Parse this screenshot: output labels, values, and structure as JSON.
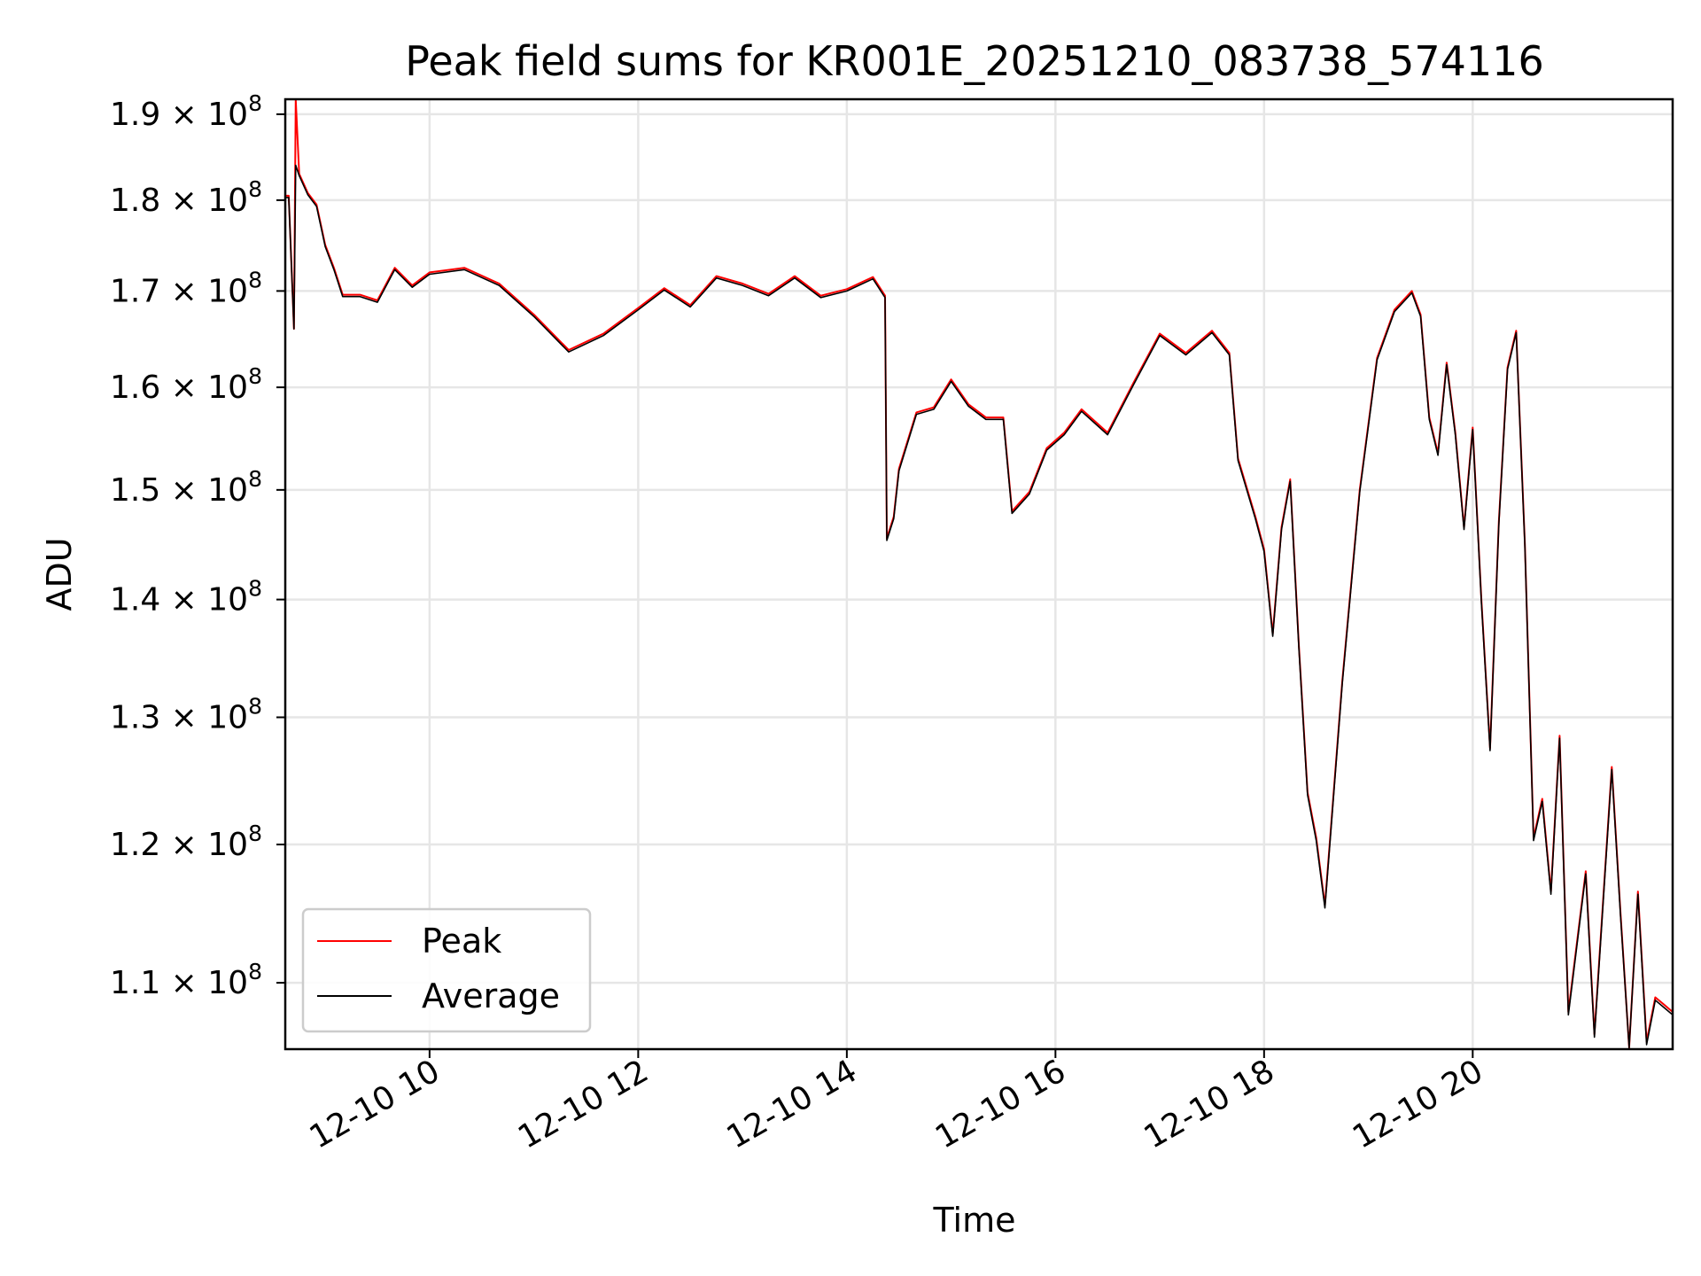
{
  "chart_data": {
    "type": "line",
    "title": "Peak field sums for KR001E_20251210_083738_574116",
    "xlabel": "Time",
    "ylabel": "ADU",
    "yscale": "log",
    "xlim": [
      "2025-12-10 08:37",
      "2025-12-10 21:55"
    ],
    "ylim": [
      105500000,
      191800000
    ],
    "grid": true,
    "legend_position": "lower-left",
    "x_ticks": [
      "12-10 10",
      "12-10 12",
      "12-10 14",
      "12-10 16",
      "12-10 18",
      "12-10 20"
    ],
    "y_ticks": [
      {
        "value": 190000000,
        "mantissa": "1.9",
        "exponent": "8"
      },
      {
        "value": 180000000,
        "mantissa": "1.8",
        "exponent": "8"
      },
      {
        "value": 170000000,
        "mantissa": "1.7",
        "exponent": "8"
      },
      {
        "value": 160000000,
        "mantissa": "1.6",
        "exponent": "8"
      },
      {
        "value": 150000000,
        "mantissa": "1.5",
        "exponent": "8"
      },
      {
        "value": 140000000,
        "mantissa": "1.4",
        "exponent": "8"
      },
      {
        "value": 130000000,
        "mantissa": "1.3",
        "exponent": "8"
      },
      {
        "value": 120000000,
        "mantissa": "1.2",
        "exponent": "8"
      },
      {
        "value": 110000000,
        "mantissa": "1.1",
        "exponent": "8"
      }
    ],
    "series": [
      {
        "name": "Peak",
        "color": "#ff0000",
        "points": [
          [
            "2025-12-10 08:37",
            180.5
          ],
          [
            "2025-12-10 08:39",
            180.5
          ],
          [
            "2025-12-10 08:42",
            166.0
          ],
          [
            "2025-12-10 08:43",
            191.8
          ],
          [
            "2025-12-10 08:45",
            183.0
          ],
          [
            "2025-12-10 08:50",
            180.8
          ],
          [
            "2025-12-10 08:55",
            179.5
          ],
          [
            "2025-12-10 09:00",
            175.0
          ],
          [
            "2025-12-10 09:05",
            172.5
          ],
          [
            "2025-12-10 09:10",
            169.6
          ],
          [
            "2025-12-10 09:20",
            169.6
          ],
          [
            "2025-12-10 09:30",
            169.0
          ],
          [
            "2025-12-10 09:40",
            172.5
          ],
          [
            "2025-12-10 09:50",
            170.6
          ],
          [
            "2025-12-10 10:00",
            172.0
          ],
          [
            "2025-12-10 10:20",
            172.5
          ],
          [
            "2025-12-10 10:40",
            170.8
          ],
          [
            "2025-12-10 11:00",
            167.5
          ],
          [
            "2025-12-10 11:20",
            163.8
          ],
          [
            "2025-12-10 11:40",
            165.5
          ],
          [
            "2025-12-10 12:00",
            168.2
          ],
          [
            "2025-12-10 12:15",
            170.3
          ],
          [
            "2025-12-10 12:30",
            168.5
          ],
          [
            "2025-12-10 12:45",
            171.6
          ],
          [
            "2025-12-10 13:00",
            170.8
          ],
          [
            "2025-12-10 13:15",
            169.7
          ],
          [
            "2025-12-10 13:30",
            171.6
          ],
          [
            "2025-12-10 13:45",
            169.5
          ],
          [
            "2025-12-10 14:00",
            170.2
          ],
          [
            "2025-12-10 14:15",
            171.5
          ],
          [
            "2025-12-10 14:22",
            169.5
          ],
          [
            "2025-12-10 14:23",
            145.5
          ],
          [
            "2025-12-10 14:27",
            147.5
          ],
          [
            "2025-12-10 14:30",
            152.0
          ],
          [
            "2025-12-10 14:40",
            157.5
          ],
          [
            "2025-12-10 14:50",
            158.0
          ],
          [
            "2025-12-10 15:00",
            160.8
          ],
          [
            "2025-12-10 15:10",
            158.3
          ],
          [
            "2025-12-10 15:20",
            157.0
          ],
          [
            "2025-12-10 15:30",
            157.0
          ],
          [
            "2025-12-10 15:35",
            148.0
          ],
          [
            "2025-12-10 15:45",
            149.8
          ],
          [
            "2025-12-10 15:55",
            154.0
          ],
          [
            "2025-12-10 16:05",
            155.5
          ],
          [
            "2025-12-10 16:15",
            157.8
          ],
          [
            "2025-12-10 16:30",
            155.5
          ],
          [
            "2025-12-10 16:45",
            160.5
          ],
          [
            "2025-12-10 17:00",
            165.5
          ],
          [
            "2025-12-10 17:15",
            163.5
          ],
          [
            "2025-12-10 17:30",
            165.8
          ],
          [
            "2025-12-10 17:40",
            163.5
          ],
          [
            "2025-12-10 17:45",
            153.0
          ],
          [
            "2025-12-10 17:55",
            147.5
          ],
          [
            "2025-12-10 18:00",
            144.5
          ],
          [
            "2025-12-10 18:05",
            137.0
          ],
          [
            "2025-12-10 18:10",
            146.5
          ],
          [
            "2025-12-10 18:15",
            151.0
          ],
          [
            "2025-12-10 18:20",
            136.0
          ],
          [
            "2025-12-10 18:25",
            124.0
          ],
          [
            "2025-12-10 18:30",
            120.5
          ],
          [
            "2025-12-10 18:35",
            115.5
          ],
          [
            "2025-12-10 18:45",
            133.0
          ],
          [
            "2025-12-10 18:55",
            150.0
          ],
          [
            "2025-12-10 19:05",
            163.0
          ],
          [
            "2025-12-10 19:15",
            168.0
          ],
          [
            "2025-12-10 19:25",
            170.0
          ],
          [
            "2025-12-10 19:30",
            167.5
          ],
          [
            "2025-12-10 19:35",
            157.0
          ],
          [
            "2025-12-10 19:40",
            153.5
          ],
          [
            "2025-12-10 19:45",
            162.5
          ],
          [
            "2025-12-10 19:50",
            155.5
          ],
          [
            "2025-12-10 19:55",
            146.5
          ],
          [
            "2025-12-10 20:00",
            156.0
          ],
          [
            "2025-12-10 20:05",
            140.0
          ],
          [
            "2025-12-10 20:10",
            127.5
          ],
          [
            "2025-12-10 20:15",
            147.0
          ],
          [
            "2025-12-10 20:20",
            162.0
          ],
          [
            "2025-12-10 20:25",
            165.8
          ],
          [
            "2025-12-10 20:30",
            145.0
          ],
          [
            "2025-12-10 20:35",
            120.5
          ],
          [
            "2025-12-10 20:40",
            123.5
          ],
          [
            "2025-12-10 20:45",
            116.5
          ],
          [
            "2025-12-10 20:50",
            128.5
          ],
          [
            "2025-12-10 20:55",
            108.0
          ],
          [
            "2025-12-10 21:05",
            118.0
          ],
          [
            "2025-12-10 21:10",
            106.5
          ],
          [
            "2025-12-10 21:20",
            126.0
          ],
          [
            "2025-12-10 21:25",
            115.0
          ],
          [
            "2025-12-10 21:30",
            105.6
          ],
          [
            "2025-12-10 21:35",
            116.5
          ],
          [
            "2025-12-10 21:40",
            106.0
          ],
          [
            "2025-12-10 21:45",
            109.0
          ],
          [
            "2025-12-10 21:50",
            108.5
          ],
          [
            "2025-12-10 21:55",
            108.0
          ]
        ]
      },
      {
        "name": "Average",
        "color": "#000000",
        "points": [
          [
            "2025-12-10 08:37",
            180.3
          ],
          [
            "2025-12-10 08:39",
            180.3
          ],
          [
            "2025-12-10 08:42",
            166.0
          ],
          [
            "2025-12-10 08:43",
            184.0
          ],
          [
            "2025-12-10 08:45",
            182.8
          ],
          [
            "2025-12-10 08:50",
            180.6
          ],
          [
            "2025-12-10 08:55",
            179.3
          ],
          [
            "2025-12-10 09:00",
            174.8
          ],
          [
            "2025-12-10 09:05",
            172.3
          ],
          [
            "2025-12-10 09:10",
            169.4
          ],
          [
            "2025-12-10 09:20",
            169.4
          ],
          [
            "2025-12-10 09:30",
            168.8
          ],
          [
            "2025-12-10 09:40",
            172.3
          ],
          [
            "2025-12-10 09:50",
            170.4
          ],
          [
            "2025-12-10 10:00",
            171.8
          ],
          [
            "2025-12-10 10:20",
            172.3
          ],
          [
            "2025-12-10 10:40",
            170.6
          ],
          [
            "2025-12-10 11:00",
            167.3
          ],
          [
            "2025-12-10 11:20",
            163.6
          ],
          [
            "2025-12-10 11:40",
            165.3
          ],
          [
            "2025-12-10 12:00",
            168.0
          ],
          [
            "2025-12-10 12:15",
            170.1
          ],
          [
            "2025-12-10 12:30",
            168.3
          ],
          [
            "2025-12-10 12:45",
            171.4
          ],
          [
            "2025-12-10 13:00",
            170.6
          ],
          [
            "2025-12-10 13:15",
            169.5
          ],
          [
            "2025-12-10 13:30",
            171.4
          ],
          [
            "2025-12-10 13:45",
            169.3
          ],
          [
            "2025-12-10 14:00",
            170.0
          ],
          [
            "2025-12-10 14:15",
            171.3
          ],
          [
            "2025-12-10 14:22",
            169.3
          ],
          [
            "2025-12-10 14:23",
            145.3
          ],
          [
            "2025-12-10 14:27",
            147.3
          ],
          [
            "2025-12-10 14:30",
            151.8
          ],
          [
            "2025-12-10 14:40",
            157.3
          ],
          [
            "2025-12-10 14:50",
            157.8
          ],
          [
            "2025-12-10 15:00",
            160.6
          ],
          [
            "2025-12-10 15:10",
            158.1
          ],
          [
            "2025-12-10 15:20",
            156.8
          ],
          [
            "2025-12-10 15:30",
            156.8
          ],
          [
            "2025-12-10 15:35",
            147.8
          ],
          [
            "2025-12-10 15:45",
            149.6
          ],
          [
            "2025-12-10 15:55",
            153.8
          ],
          [
            "2025-12-10 16:05",
            155.3
          ],
          [
            "2025-12-10 16:15",
            157.6
          ],
          [
            "2025-12-10 16:30",
            155.3
          ],
          [
            "2025-12-10 16:45",
            160.3
          ],
          [
            "2025-12-10 17:00",
            165.3
          ],
          [
            "2025-12-10 17:15",
            163.3
          ],
          [
            "2025-12-10 17:30",
            165.6
          ],
          [
            "2025-12-10 17:40",
            163.3
          ],
          [
            "2025-12-10 17:45",
            152.8
          ],
          [
            "2025-12-10 17:55",
            147.3
          ],
          [
            "2025-12-10 18:00",
            144.3
          ],
          [
            "2025-12-10 18:05",
            136.8
          ],
          [
            "2025-12-10 18:10",
            146.3
          ],
          [
            "2025-12-10 18:15",
            150.8
          ],
          [
            "2025-12-10 18:20",
            135.8
          ],
          [
            "2025-12-10 18:25",
            123.8
          ],
          [
            "2025-12-10 18:30",
            120.3
          ],
          [
            "2025-12-10 18:35",
            115.3
          ],
          [
            "2025-12-10 18:45",
            132.8
          ],
          [
            "2025-12-10 18:55",
            149.8
          ],
          [
            "2025-12-10 19:05",
            162.8
          ],
          [
            "2025-12-10 19:15",
            167.8
          ],
          [
            "2025-12-10 19:25",
            169.8
          ],
          [
            "2025-12-10 19:30",
            167.3
          ],
          [
            "2025-12-10 19:35",
            156.8
          ],
          [
            "2025-12-10 19:40",
            153.3
          ],
          [
            "2025-12-10 19:45",
            162.3
          ],
          [
            "2025-12-10 19:50",
            155.3
          ],
          [
            "2025-12-10 19:55",
            146.3
          ],
          [
            "2025-12-10 20:00",
            155.8
          ],
          [
            "2025-12-10 20:05",
            139.8
          ],
          [
            "2025-12-10 20:10",
            127.3
          ],
          [
            "2025-12-10 20:15",
            146.8
          ],
          [
            "2025-12-10 20:20",
            161.8
          ],
          [
            "2025-12-10 20:25",
            165.6
          ],
          [
            "2025-12-10 20:30",
            144.8
          ],
          [
            "2025-12-10 20:35",
            120.3
          ],
          [
            "2025-12-10 20:40",
            123.3
          ],
          [
            "2025-12-10 20:45",
            116.3
          ],
          [
            "2025-12-10 20:50",
            128.3
          ],
          [
            "2025-12-10 20:55",
            107.8
          ],
          [
            "2025-12-10 21:05",
            117.8
          ],
          [
            "2025-12-10 21:10",
            106.3
          ],
          [
            "2025-12-10 21:20",
            125.8
          ],
          [
            "2025-12-10 21:25",
            114.8
          ],
          [
            "2025-12-10 21:30",
            105.6
          ],
          [
            "2025-12-10 21:35",
            116.3
          ],
          [
            "2025-12-10 21:40",
            105.8
          ],
          [
            "2025-12-10 21:45",
            108.8
          ],
          [
            "2025-12-10 21:50",
            108.3
          ],
          [
            "2025-12-10 21:55",
            107.8
          ]
        ]
      }
    ]
  }
}
